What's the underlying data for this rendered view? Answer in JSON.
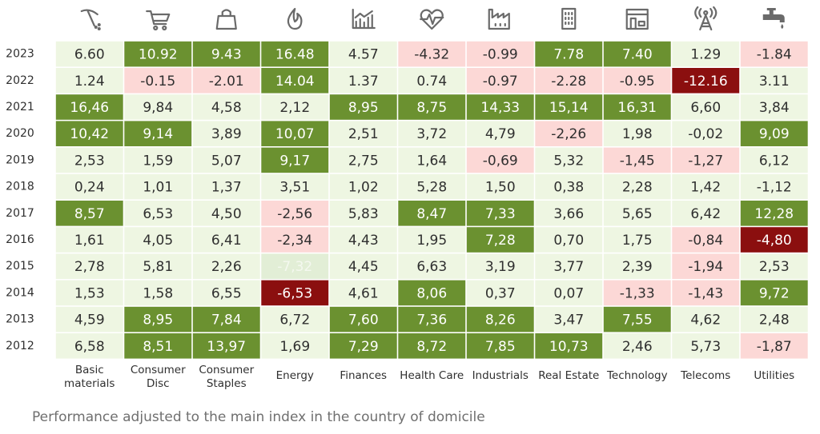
{
  "chart_data": {
    "type": "heatmap",
    "title": "",
    "caption": "Performance adjusted to the main index in the country of domicile",
    "categories": [
      {
        "label": [
          "Basic",
          "materials"
        ],
        "icon": "pickaxe-icon"
      },
      {
        "label": [
          "Consumer",
          "Disc"
        ],
        "icon": "shopping-cart-icon"
      },
      {
        "label": [
          "Consumer",
          "Staples"
        ],
        "icon": "shopping-bag-icon"
      },
      {
        "label": [
          "Energy"
        ],
        "icon": "flame-icon"
      },
      {
        "label": [
          "Finances"
        ],
        "icon": "growth-chart-icon"
      },
      {
        "label": [
          "Health Care"
        ],
        "icon": "heartbeat-icon"
      },
      {
        "label": [
          "Industrials"
        ],
        "icon": "factory-icon"
      },
      {
        "label": [
          "Real Estate"
        ],
        "icon": "building-icon"
      },
      {
        "label": [
          "Technology"
        ],
        "icon": "computer-icon"
      },
      {
        "label": [
          "Telecoms"
        ],
        "icon": "antenna-tower-icon"
      },
      {
        "label": [
          "Utilities"
        ],
        "icon": "water-tap-icon"
      }
    ],
    "years": [
      "2023",
      "2022",
      "2021",
      "2020",
      "2019",
      "2018",
      "2017",
      "2016",
      "2015",
      "2014",
      "2013",
      "2012"
    ],
    "values": [
      [
        "6.60",
        "10.92",
        "9.43",
        "16.48",
        "4.57",
        "-4.32",
        "-0.99",
        "7.78",
        "7.40",
        "1.29",
        "-1.84"
      ],
      [
        "1.24",
        "-0.15",
        "-2.01",
        "14.04",
        "1.37",
        "0.74",
        "-0.97",
        "-2.28",
        "-0.95",
        "-12.16",
        "3.11"
      ],
      [
        "16,46",
        "9,84",
        "4,58",
        "2,12",
        "8,95",
        "8,75",
        "14,33",
        "15,14",
        "16,31",
        "6,60",
        "3,84"
      ],
      [
        "10,42",
        "9,14",
        "3,89",
        "10,07",
        "2,51",
        "3,72",
        "4,79",
        "-2,26",
        "1,98",
        "-0,02",
        "9,09"
      ],
      [
        "2,53",
        "1,59",
        "5,07",
        "9,17",
        "2,75",
        "1,64",
        "-0,69",
        "5,32",
        "-1,45",
        "-1,27",
        "6,12"
      ],
      [
        "0,24",
        "1,01",
        "1,37",
        "3,51",
        "1,02",
        "5,28",
        "1,50",
        "0,38",
        "2,28",
        "1,42",
        "-1,12"
      ],
      [
        "8,57",
        "6,53",
        "4,50",
        "-2,56",
        "5,83",
        "8,47",
        "7,33",
        "3,66",
        "5,65",
        "6,42",
        "12,28"
      ],
      [
        "1,61",
        "4,05",
        "6,41",
        "-2,34",
        "4,43",
        "1,95",
        "7,28",
        "0,70",
        "1,75",
        "-0,84",
        "-4,80"
      ],
      [
        "2,78",
        "5,81",
        "2,26",
        "-7,32",
        "4,45",
        "6,63",
        "3,19",
        "3,77",
        "2,39",
        "-1,94",
        "2,53"
      ],
      [
        "1,53",
        "1,58",
        "6,55",
        "-6,53",
        "4,61",
        "8,06",
        "0,37",
        "0,07",
        "-1,33",
        "-1,43",
        "9,72"
      ],
      [
        "4,59",
        "8,95",
        "7,84",
        "6,72",
        "7,60",
        "7,36",
        "8,26",
        "3,47",
        "7,55",
        "4,62",
        "2,48"
      ],
      [
        "6,58",
        "8,51",
        "13,97",
        "1,69",
        "7,29",
        "8,72",
        "7,85",
        "10,73",
        "2,46",
        "5,73",
        "-1,87"
      ]
    ],
    "color_classes": [
      [
        "n",
        "G",
        "G",
        "G",
        "n",
        "p",
        "p",
        "G",
        "G",
        "n",
        "p"
      ],
      [
        "n",
        "p",
        "p",
        "G",
        "n",
        "n",
        "p",
        "p",
        "p",
        "R",
        "n"
      ],
      [
        "G",
        "n",
        "n",
        "n",
        "G",
        "G",
        "G",
        "G",
        "G",
        "n",
        "n"
      ],
      [
        "G",
        "G",
        "n",
        "G",
        "n",
        "n",
        "n",
        "p",
        "n",
        "n",
        "G"
      ],
      [
        "n",
        "n",
        "n",
        "G",
        "n",
        "n",
        "p",
        "n",
        "p",
        "p",
        "n"
      ],
      [
        "n",
        "n",
        "n",
        "n",
        "n",
        "n",
        "n",
        "n",
        "n",
        "n",
        "n"
      ],
      [
        "G",
        "n",
        "n",
        "p",
        "n",
        "G",
        "G",
        "n",
        "n",
        "n",
        "G"
      ],
      [
        "n",
        "n",
        "n",
        "p",
        "n",
        "n",
        "G",
        "n",
        "n",
        "p",
        "R"
      ],
      [
        "n",
        "n",
        "n",
        "f",
        "n",
        "n",
        "n",
        "n",
        "n",
        "p",
        "n"
      ],
      [
        "n",
        "n",
        "n",
        "R",
        "n",
        "G",
        "n",
        "n",
        "p",
        "p",
        "G"
      ],
      [
        "n",
        "G",
        "G",
        "n",
        "G",
        "G",
        "G",
        "n",
        "G",
        "n",
        "n"
      ],
      [
        "n",
        "G",
        "G",
        "n",
        "G",
        "G",
        "G",
        "G",
        "n",
        "n",
        "p"
      ]
    ],
    "palette": {
      "n": {
        "bg": "#eef6e2",
        "fg": "#2f2f2f"
      },
      "G": {
        "bg": "#6b9130",
        "fg": "#ffffff"
      },
      "p": {
        "bg": "#fcd8d6",
        "fg": "#2f2f2f"
      },
      "R": {
        "bg": "#8b0f0f",
        "fg": "#ffffff"
      },
      "f": {
        "bg": "#e2eed6",
        "fg": "#f4f8ef"
      }
    },
    "legend": "none"
  }
}
